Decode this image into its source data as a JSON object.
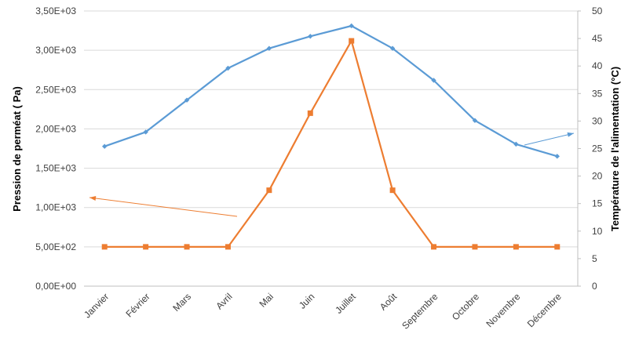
{
  "chart_data": {
    "type": "line",
    "categories": [
      "Janvier",
      "Février",
      "Mars",
      "Avril",
      "Mai",
      "Juin",
      "Juillet",
      "Août",
      "Septembre",
      "Octobre",
      "Novembre",
      "Décembre"
    ],
    "series": [
      {
        "name": "",
        "axis": "secondary",
        "color": "#5B9BD5",
        "marker": "diamond",
        "values": [
          25.4,
          28.0,
          33.8,
          39.6,
          43.2,
          45.4,
          47.3,
          43.2,
          37.4,
          30.1,
          25.8,
          23.6
        ]
      },
      {
        "name": "",
        "axis": "primary",
        "color": "#ED7D31",
        "marker": "square",
        "values": [
          500,
          500,
          500,
          500,
          1220,
          2200,
          3120,
          1220,
          500,
          500,
          500,
          500
        ]
      }
    ],
    "ylabel": "Pression de perméat ( Pa)",
    "y2label": "Température de l'alimentation (°C)",
    "ylim": [
      0,
      3500
    ],
    "y2lim": [
      0,
      50
    ],
    "yticks": [
      "0,00E+00",
      "5,00E+02",
      "1,00E+03",
      "1,50E+03",
      "2,00E+03",
      "2,50E+03",
      "3,00E+03",
      "3,50E+03"
    ],
    "y2ticks": [
      "0",
      "5",
      "10",
      "15",
      "20",
      "25",
      "30",
      "35",
      "40",
      "45",
      "50"
    ],
    "grid": true,
    "legend": "none",
    "gridline_color": "#D9D9D9"
  }
}
